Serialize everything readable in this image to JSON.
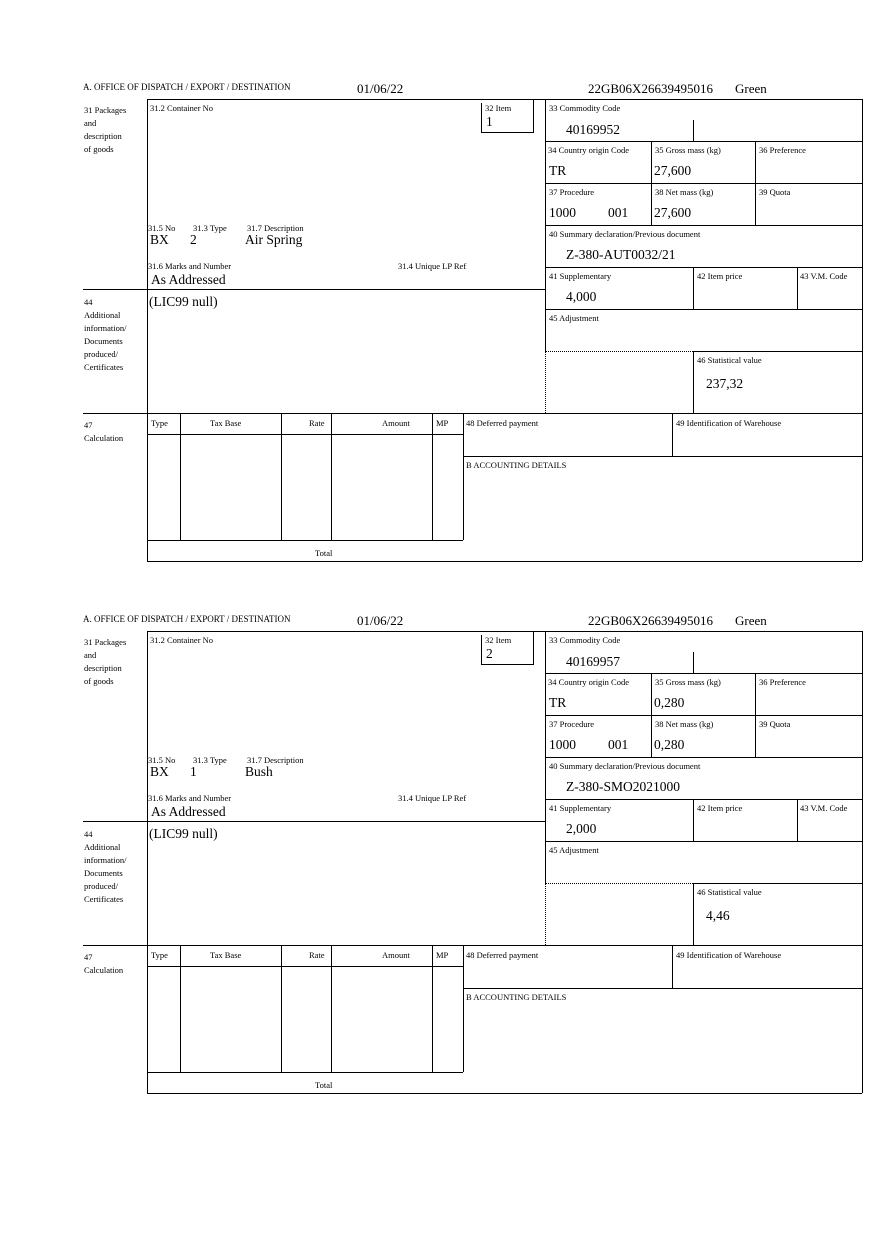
{
  "forms": [
    {
      "header": {
        "office_label": "A.  OFFICE OF DISPATCH / EXPORT / DESTINATION",
        "date": "01/06/22",
        "reference": "22GB06X26639495016",
        "channel": "Green"
      },
      "labels": {
        "packages": "31 Packages\nand\ndescription\nof goods",
        "container_no": "31.2 Container No",
        "item": "32 Item",
        "commodity_code": "33 Commodity Code",
        "country_origin": "34 Country origin Code",
        "gross_mass": "35 Gross mass (kg)",
        "preference": "36 Preference",
        "procedure": "37 Procedure",
        "net_mass": "38 Net mass (kg)",
        "quota": "39 Quota",
        "summary_declaration": "40 Summary declaration/Previous document",
        "no": "31.5 No",
        "type": "31.3 Type",
        "description": "31.7 Description",
        "marks": "31.6 Marks and Number",
        "unique_lp_ref": "31.4 Unique LP Ref",
        "supplementary": "41 Supplementary",
        "item_price": "42 Item price",
        "vm_code": "43 V.M. Code",
        "additional_info": "44\nAdditional\ninformation/\nDocuments\nproduced/\nCertificates",
        "adjustment": "45 Adjustment",
        "statistical_value": "46 Statistical value",
        "calculation": "47\nCalculation",
        "col_type": "Type",
        "col_tax_base": "Tax Base",
        "col_rate": "Rate",
        "col_amount": "Amount",
        "col_mp": "MP",
        "deferred_payment": "48 Deferred payment",
        "warehouse": "49 Identification of Warehouse",
        "accounting": "B ACCOUNTING DETAILS",
        "total": "Total"
      },
      "values": {
        "item": "1",
        "commodity_code": "40169952",
        "country_origin": "TR",
        "gross_mass": "27,600",
        "procedure": "1000",
        "procedure_extra": "001",
        "net_mass": "27,600",
        "summary_declaration": "Z-380-AUT0032/21",
        "no": "BX",
        "type": "2",
        "description": "Air Spring",
        "marks": "As Addressed",
        "supplementary": "4,000",
        "additional_info": "(LIC99 null)",
        "statistical_value": "237,32"
      }
    },
    {
      "header": {
        "office_label": "A.  OFFICE OF DISPATCH / EXPORT / DESTINATION",
        "date": "01/06/22",
        "reference": "22GB06X26639495016",
        "channel": "Green"
      },
      "labels": {
        "packages": "31 Packages\nand\ndescription\nof goods",
        "container_no": "31.2 Container No",
        "item": "32 Item",
        "commodity_code": "33 Commodity Code",
        "country_origin": "34 Country origin Code",
        "gross_mass": "35 Gross mass (kg)",
        "preference": "36 Preference",
        "procedure": "37 Procedure",
        "net_mass": "38 Net mass (kg)",
        "quota": "39 Quota",
        "summary_declaration": "40 Summary declaration/Previous document",
        "no": "31.5 No",
        "type": "31.3 Type",
        "description": "31.7 Description",
        "marks": "31.6 Marks and Number",
        "unique_lp_ref": "31.4 Unique LP Ref",
        "supplementary": "41 Supplementary",
        "item_price": "42 Item price",
        "vm_code": "43 V.M. Code",
        "additional_info": "44\nAdditional\ninformation/\nDocuments\nproduced/\nCertificates",
        "adjustment": "45 Adjustment",
        "statistical_value": "46 Statistical value",
        "calculation": "47\nCalculation",
        "col_type": "Type",
        "col_tax_base": "Tax Base",
        "col_rate": "Rate",
        "col_amount": "Amount",
        "col_mp": "MP",
        "deferred_payment": "48 Deferred payment",
        "warehouse": "49 Identification of Warehouse",
        "accounting": "B ACCOUNTING DETAILS",
        "total": "Total"
      },
      "values": {
        "item": "2",
        "commodity_code": "40169957",
        "country_origin": "TR",
        "gross_mass": "0,280",
        "procedure": "1000",
        "procedure_extra": "001",
        "net_mass": "0,280",
        "summary_declaration": "Z-380-SMO2021000",
        "no": "BX",
        "type": "1",
        "description": "Bush",
        "marks": "As Addressed",
        "supplementary": "2,000",
        "additional_info": "(LIC99 null)",
        "statistical_value": "4,46"
      }
    }
  ]
}
